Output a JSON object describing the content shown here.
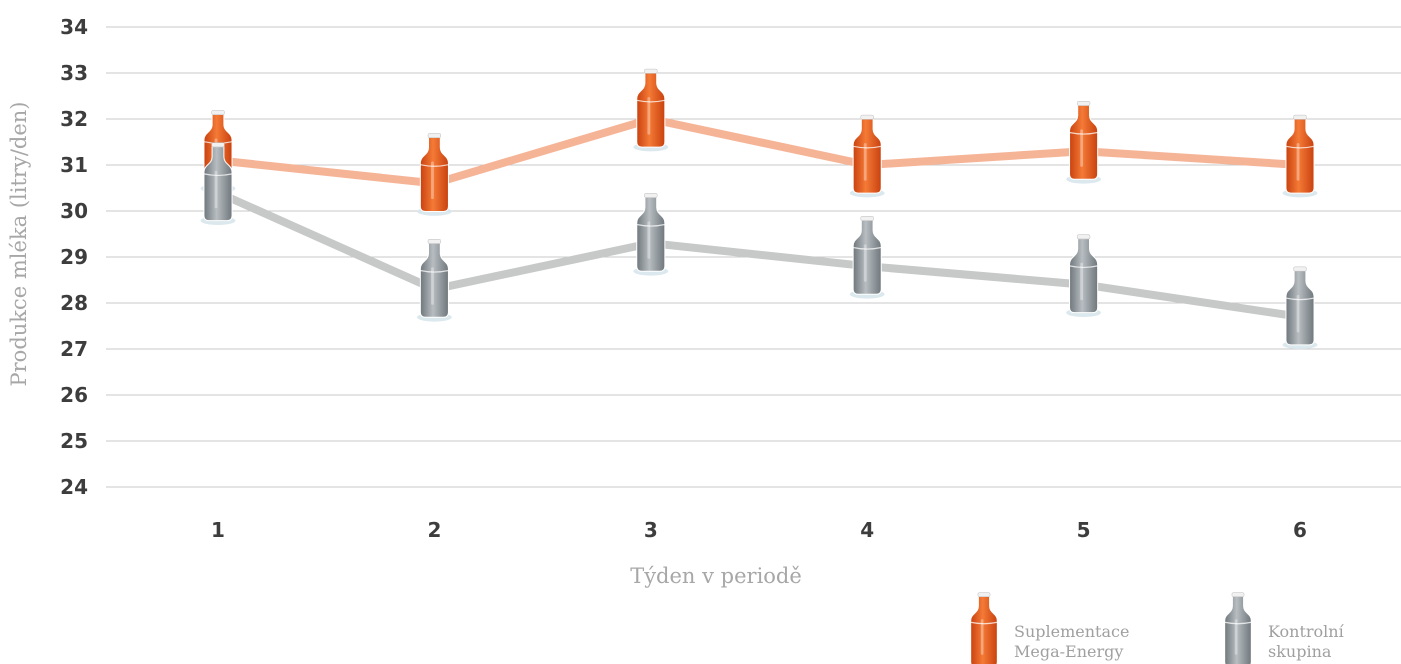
{
  "chart_data": {
    "type": "line",
    "title": "",
    "xlabel": "Týden v periodě",
    "ylabel": "Produkce mléka (litry/den)",
    "categories": [
      "1",
      "2",
      "3",
      "4",
      "5",
      "6"
    ],
    "yticks": [
      "24",
      "25",
      "26",
      "27",
      "28",
      "29",
      "30",
      "31",
      "32",
      "33",
      "34"
    ],
    "ylim": [
      24,
      34
    ],
    "grid": true,
    "legend_position": "bottom-right",
    "series": [
      {
        "name": "Suplementace Mega-Energy",
        "legend_lines": [
          "Suplementace",
          "Mega-Energy"
        ],
        "values": [
          31.1,
          30.6,
          32.0,
          31.0,
          31.3,
          31.0
        ],
        "line_color": "#f6b497",
        "marker_color": "#e8581c"
      },
      {
        "name": "Kontrolní skupina",
        "legend_lines": [
          "Kontrolní",
          "skupina"
        ],
        "values": [
          30.4,
          28.3,
          29.3,
          28.8,
          28.4,
          27.7
        ],
        "line_color": "#c6c9c8",
        "marker_color": "#8f969b"
      }
    ]
  }
}
